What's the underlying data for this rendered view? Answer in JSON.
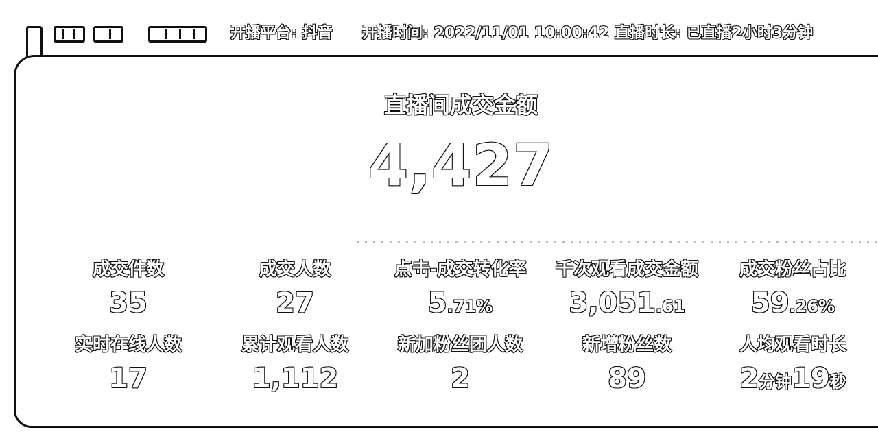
{
  "header": {
    "platform": "开播平台: 抖音",
    "start_time": "开播时间: 2022/11/01 10:00:42",
    "duration": "直播时长: 已直播2小时3分钟"
  },
  "main": {
    "title": "直播间成交金额",
    "value": "4,427"
  },
  "metrics": [
    {
      "label": "成交件数",
      "value": "35",
      "suffix": ""
    },
    {
      "label": "成交人数",
      "value": "27",
      "suffix": ""
    },
    {
      "label": "点击-成交转化率",
      "value": "5",
      "suffix": ".71%"
    },
    {
      "label": "千次观看成交金额",
      "value": "3,051",
      "suffix": ".61"
    },
    {
      "label": "成交粉丝占比",
      "value": "59",
      "suffix": ".26%"
    },
    {
      "label": "实时在线人数",
      "value": "17",
      "suffix": ""
    },
    {
      "label": "累计观看人数",
      "value": "1,112",
      "suffix": ""
    },
    {
      "label": "新加粉丝团人数",
      "value": "2",
      "suffix": ""
    },
    {
      "label": "新增粉丝数",
      "value": "89",
      "suffix": ""
    },
    {
      "label": "人均观看时长",
      "value": "2",
      "suffix": "分钟",
      "value2": "19",
      "suffix2": "秒"
    }
  ]
}
